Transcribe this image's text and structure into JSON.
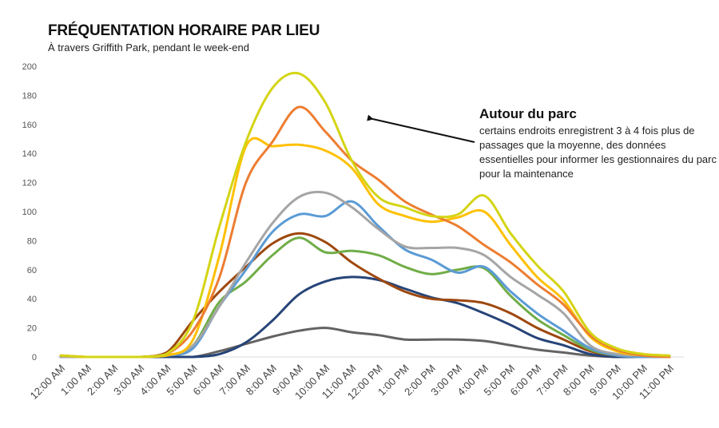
{
  "chart_data": {
    "type": "line",
    "title": "FRÉQUENTATION HORAIRE PAR LIEU",
    "subtitle": "À travers Griffith Park, pendant le week-end",
    "xlabel": "",
    "ylabel": "",
    "ylim": [
      0,
      200
    ],
    "yticks": [
      0,
      20,
      40,
      60,
      80,
      100,
      120,
      140,
      160,
      180,
      200
    ],
    "grid": false,
    "legend": "none",
    "categories": [
      "12:00 AM",
      "1:00 AM",
      "2:00 AM",
      "3:00 AM",
      "4:00 AM",
      "5:00 AM",
      "6:00 AM",
      "7:00 AM",
      "8:00 AM",
      "9:00 AM",
      "10:00 AM",
      "11:00 AM",
      "12:00 PM",
      "1:00 PM",
      "2:00 PM",
      "3:00 PM",
      "4:00 PM",
      "5:00 PM",
      "6:00 PM",
      "7:00 PM",
      "8:00 PM",
      "9:00 PM",
      "10:00 PM",
      "11:00 PM"
    ],
    "series": [
      {
        "color": "#d4d414",
        "values": [
          1,
          0,
          0,
          0,
          2,
          25,
          90,
          148,
          185,
          195,
          175,
          135,
          110,
          103,
          97,
          98,
          111,
          85,
          63,
          45,
          17,
          6,
          2,
          1
        ]
      },
      {
        "color": "#ed7d31",
        "values": [
          1,
          0,
          0,
          0,
          2,
          18,
          55,
          120,
          148,
          172,
          155,
          135,
          122,
          107,
          98,
          90,
          77,
          65,
          50,
          36,
          15,
          5,
          1,
          0
        ]
      },
      {
        "color": "#ffc000",
        "values": [
          1,
          0,
          0,
          0,
          1,
          12,
          70,
          145,
          145,
          146,
          142,
          130,
          105,
          97,
          93,
          96,
          100,
          77,
          55,
          39,
          14,
          4,
          1,
          0
        ]
      },
      {
        "color": "#a5a5a5",
        "values": [
          0,
          0,
          0,
          0,
          1,
          8,
          35,
          65,
          92,
          110,
          113,
          103,
          88,
          76,
          75,
          75,
          70,
          55,
          43,
          30,
          8,
          2,
          1,
          0
        ]
      },
      {
        "color": "#5b9bd5",
        "values": [
          0,
          0,
          0,
          0,
          1,
          6,
          35,
          60,
          86,
          98,
          97,
          107,
          90,
          74,
          67,
          58,
          62,
          45,
          30,
          18,
          6,
          1,
          0,
          0
        ]
      },
      {
        "color": "#70ad47",
        "values": [
          0,
          0,
          0,
          0,
          1,
          8,
          38,
          52,
          70,
          82,
          72,
          73,
          70,
          62,
          57,
          60,
          61,
          42,
          26,
          15,
          5,
          1,
          0,
          0
        ]
      },
      {
        "color": "#9e480e",
        "values": [
          0,
          0,
          0,
          0,
          3,
          25,
          45,
          62,
          78,
          85,
          79,
          65,
          54,
          45,
          40,
          39,
          37,
          30,
          20,
          12,
          4,
          1,
          0,
          0
        ]
      },
      {
        "color": "#264478",
        "values": [
          0,
          0,
          0,
          0,
          0,
          0,
          2,
          10,
          25,
          43,
          52,
          55,
          53,
          47,
          41,
          37,
          30,
          22,
          13,
          8,
          2,
          0,
          0,
          0
        ]
      },
      {
        "color": "#636363",
        "values": [
          0,
          0,
          0,
          0,
          0,
          0,
          4,
          9,
          14,
          18,
          20,
          17,
          15,
          12,
          12,
          12,
          11,
          8,
          5,
          3,
          1,
          0,
          0,
          0
        ]
      }
    ],
    "annotation": {
      "title": "Autour du parc",
      "text": "certains endroits enregistrent 3 à 4 fois plus de passages que la moyenne, des données essentielles pour informer les gestionnaires du parc pour la maintenance"
    }
  }
}
